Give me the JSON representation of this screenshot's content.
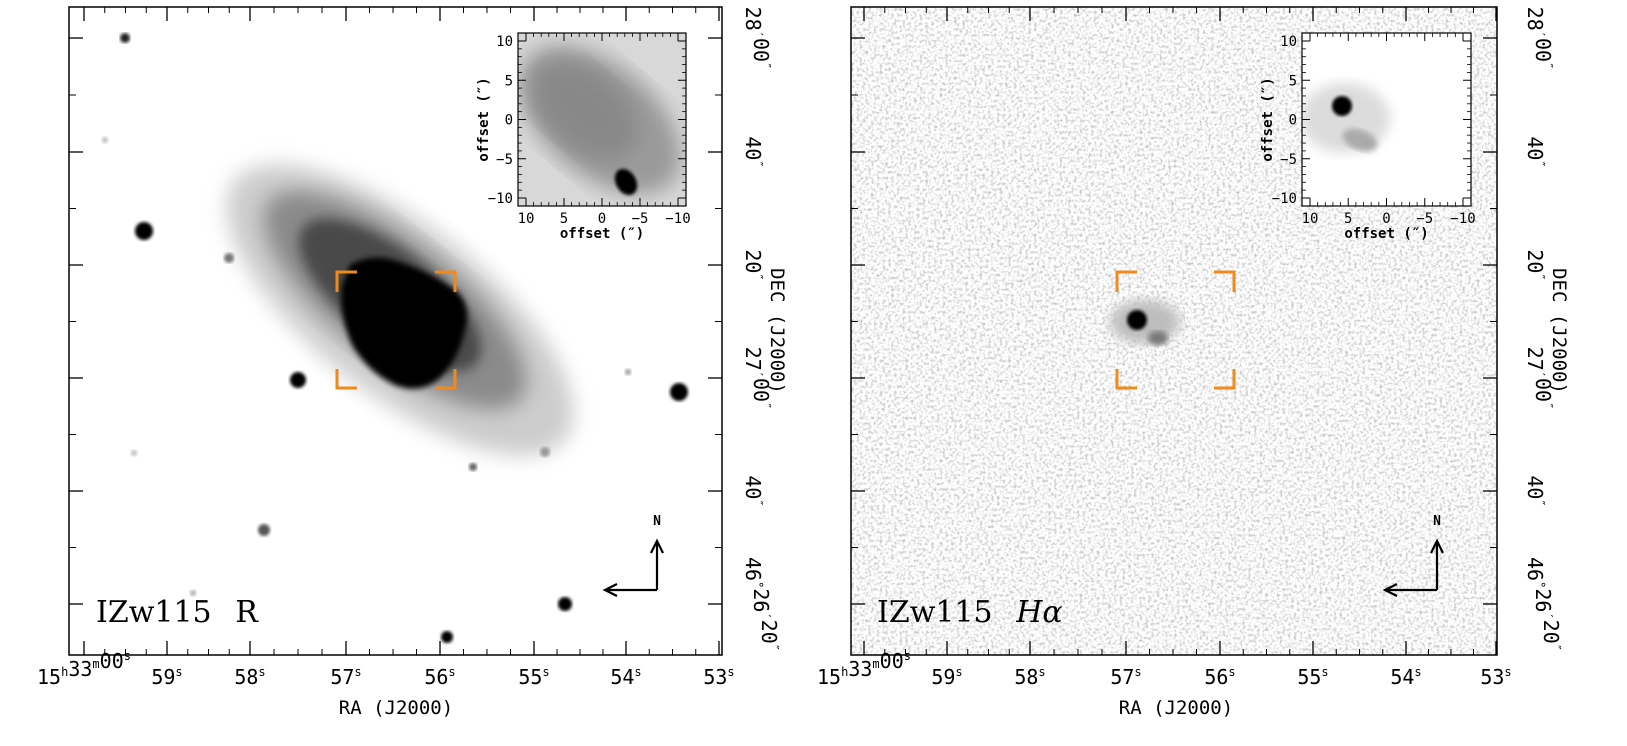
{
  "panels": [
    {
      "id": "left",
      "label_name": "IZw115",
      "label_band": "R",
      "north": "N",
      "ra_ticks": [
        {
          "h": "15",
          "m": "33",
          "s": "00"
        },
        {
          "s": "59"
        },
        {
          "s": "58"
        },
        {
          "s": "57"
        },
        {
          "s": "56"
        },
        {
          "s": "55"
        },
        {
          "s": "54"
        },
        {
          "s": "53"
        }
      ],
      "dec_ticks": [
        {
          "d": "46",
          "m": "26",
          "s": "20",
          "deg": true
        },
        {
          "s": "40"
        },
        {
          "m": "27",
          "s": "00"
        },
        {
          "s": "20"
        },
        {
          "s": "40"
        },
        {
          "m": "28",
          "s": "00"
        }
      ],
      "xlabel": "RA (J2000)",
      "ylabel": "DEC (J2000)",
      "inset": {
        "xlabel": "offset (″)",
        "ylabel": "offset (″)",
        "xticks": [
          "10",
          "5",
          "0",
          "−5",
          "−10"
        ],
        "yticks": [
          "10",
          "5",
          "0",
          "−5",
          "−10"
        ]
      }
    },
    {
      "id": "right",
      "label_name": "IZw115",
      "label_band": "Hα",
      "north": "N",
      "ra_ticks": [
        {
          "h": "15",
          "m": "33",
          "s": "00"
        },
        {
          "s": "59"
        },
        {
          "s": "58"
        },
        {
          "s": "57"
        },
        {
          "s": "56"
        },
        {
          "s": "55"
        },
        {
          "s": "54"
        },
        {
          "s": "53"
        }
      ],
      "dec_ticks": [
        {
          "d": "46",
          "m": "26",
          "s": "20",
          "deg": true
        },
        {
          "s": "40"
        },
        {
          "m": "27",
          "s": "00"
        },
        {
          "s": "20"
        },
        {
          "s": "40"
        },
        {
          "m": "28",
          "s": "00"
        }
      ],
      "xlabel": "RA (J2000)",
      "ylabel": "DEC (J2000)",
      "inset": {
        "xlabel": "offset (″)",
        "ylabel": "offset (″)",
        "xticks": [
          "10",
          "5",
          "0",
          "−5",
          "−10"
        ],
        "yticks": [
          "10",
          "5",
          "0",
          "−5",
          "−10"
        ]
      }
    }
  ],
  "colors": {
    "bracket": "#f08a1c",
    "axis": "#000000",
    "background": "#ffffff"
  }
}
